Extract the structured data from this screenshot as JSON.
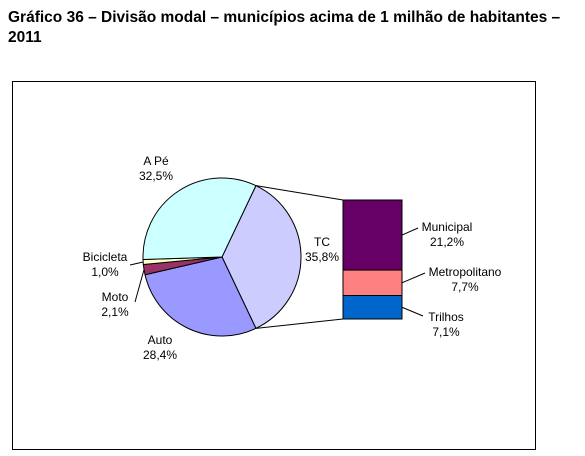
{
  "title": "Gráfico 36 – Divisão modal – municípios acima de 1 milhão de habitantes – 2011",
  "chart_data": [
    {
      "type": "pie",
      "slices": [
        {
          "name": "TC",
          "value_label": "35,8%",
          "value": 35.8,
          "color": "#ccccff"
        },
        {
          "name": "Auto",
          "value_label": "28,4%",
          "value": 28.4,
          "color": "#9999ff"
        },
        {
          "name": "Moto",
          "value_label": "2,1%",
          "value": 2.1,
          "color": "#993366"
        },
        {
          "name": "Bicicleta",
          "value_label": "1,0%",
          "value": 1.0,
          "color": "#ffffcc"
        },
        {
          "name": "A Pé",
          "value_label": "32,5%",
          "value": 32.5,
          "color": "#ccffff"
        }
      ]
    },
    {
      "type": "bar",
      "stacked": true,
      "segments": [
        {
          "name": "Municipal",
          "value_label": "21,2%",
          "value": 21.2,
          "color": "#660066"
        },
        {
          "name": "Metropolitano",
          "value_label": "7,7%",
          "value": 7.7,
          "color": "#ff8080"
        },
        {
          "name": "Trilhos",
          "value_label": "7,1%",
          "value": 7.1,
          "color": "#0066cc"
        }
      ]
    }
  ]
}
